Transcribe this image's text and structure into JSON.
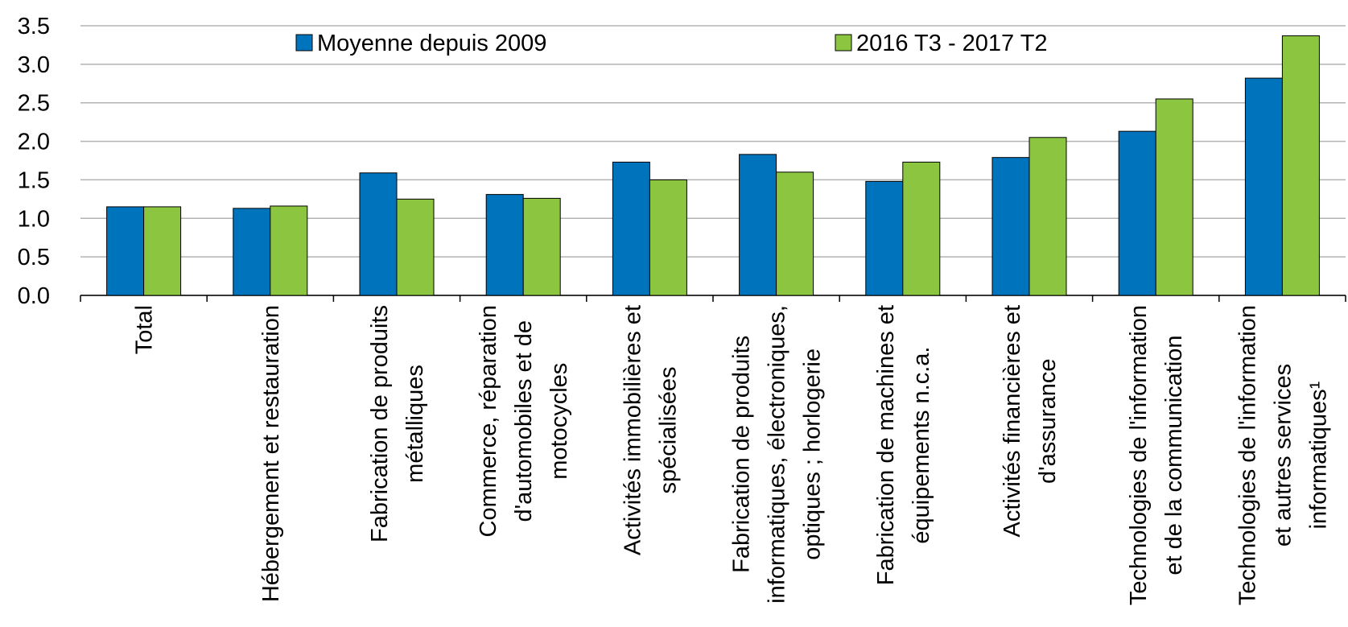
{
  "chart_data": {
    "type": "bar",
    "categories": [
      "Total",
      "Hébergement et restauration",
      "Fabrication de produits\nmétalliques",
      "Commerce, réparation\nd'automobiles et de\nmotocycles",
      "Activités immobilières et\nspécialisées",
      "Fabrication de produits\ninformatiques, électroniques,\noptiques ; horlogerie",
      "Fabrication de machines et\néquipements n.c.a.",
      "Activités financières et\nd'assurance",
      "Technologies de l'information\net de la communication",
      "Technologies de l'information\net autres services\ninformatiques¹"
    ],
    "series": [
      {
        "name": "Moyenne depuis 2009",
        "color": "#0073bd",
        "values": [
          1.15,
          1.13,
          1.59,
          1.31,
          1.73,
          1.83,
          1.48,
          1.79,
          2.13,
          2.82
        ]
      },
      {
        "name": "2016 T3 - 2017 T2",
        "color": "#8cc641",
        "values": [
          1.15,
          1.16,
          1.25,
          1.26,
          1.5,
          1.6,
          1.73,
          2.05,
          2.55,
          3.37
        ]
      }
    ],
    "ylim": [
      0,
      3.5
    ],
    "yticks": [
      {
        "value": 0,
        "label": "0.0"
      },
      0.5,
      {
        "value": 1,
        "label": "1.0"
      },
      1.5,
      {
        "value": 2,
        "label": "2.0"
      },
      2.5,
      {
        "value": 3,
        "label": "3.0"
      },
      3.5
    ],
    "grid": true
  }
}
